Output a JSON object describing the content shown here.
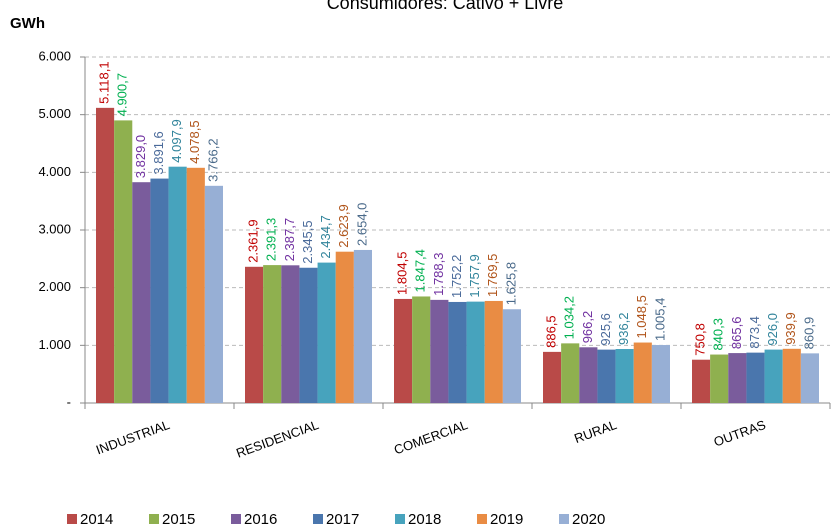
{
  "chart_data": {
    "type": "bar",
    "title": "Consumidores: Cativo + Livre",
    "y_label": "GWh",
    "categories": [
      "INDUSTRIAL",
      "RESIDENCIAL",
      "COMERCIAL",
      "RURAL",
      "OUTRAS"
    ],
    "series": [
      {
        "name": "2014",
        "color": "#b94a48",
        "label_color": "#c00000",
        "values": [
          5118.1,
          2361.9,
          1804.5,
          886.5,
          750.8
        ],
        "value_labels": [
          "5.118,1",
          "2.361,9",
          "1.804,5",
          "886,5",
          "750,8"
        ]
      },
      {
        "name": "2015",
        "color": "#8fb04f",
        "label_color": "#00b050",
        "values": [
          4900.7,
          2391.3,
          1847.4,
          1034.2,
          840.3
        ],
        "value_labels": [
          "4.900,7",
          "2.391,3",
          "1.847,4",
          "1.034,2",
          "840,3"
        ]
      },
      {
        "name": "2016",
        "color": "#7a5c9c",
        "label_color": "#7030a0",
        "values": [
          3829.0,
          2387.7,
          1788.3,
          966.2,
          865.6
        ],
        "value_labels": [
          "3.829,0",
          "2.387,7",
          "1.788,3",
          "966,2",
          "865,6"
        ]
      },
      {
        "name": "2017",
        "color": "#4a76ad",
        "label_color": "#4a6a9a",
        "values": [
          3891.6,
          2345.5,
          1752.2,
          925.6,
          873.4
        ],
        "value_labels": [
          "3.891,6",
          "2.345,5",
          "1.752,2",
          "925,6",
          "873,4"
        ]
      },
      {
        "name": "2018",
        "color": "#47a3bd",
        "label_color": "#31849b",
        "values": [
          4097.9,
          2434.7,
          1757.9,
          936.2,
          926.0
        ],
        "value_labels": [
          "4.097,9",
          "2.434,7",
          "1.757,9",
          "936,2",
          "926,0"
        ]
      },
      {
        "name": "2019",
        "color": "#e98c44",
        "label_color": "#b0541a",
        "values": [
          4078.5,
          2623.9,
          1769.5,
          1048.5,
          939.9
        ],
        "value_labels": [
          "4.078,5",
          "2.623,9",
          "1.769,5",
          "1.048,5",
          "939,9"
        ]
      },
      {
        "name": "2020",
        "color": "#97afd5",
        "label_color": "#4a6a8a",
        "values": [
          3766.2,
          2654.0,
          1625.8,
          1005.4,
          860.9
        ],
        "value_labels": [
          "3.766,2",
          "2.654,0",
          "1.625,8",
          "1.005,4",
          "860,9"
        ]
      }
    ],
    "ylim": [
      0,
      6000
    ],
    "yticks": [
      {
        "value": 0,
        "label": "-"
      },
      {
        "value": 1000,
        "label": "1.000"
      },
      {
        "value": 2000,
        "label": "2.000"
      },
      {
        "value": 3000,
        "label": "3.000"
      },
      {
        "value": 4000,
        "label": "4.000"
      },
      {
        "value": 5000,
        "label": "5.000"
      },
      {
        "value": 6000,
        "label": "6.000"
      }
    ],
    "grid": true,
    "legend": "bottom"
  }
}
